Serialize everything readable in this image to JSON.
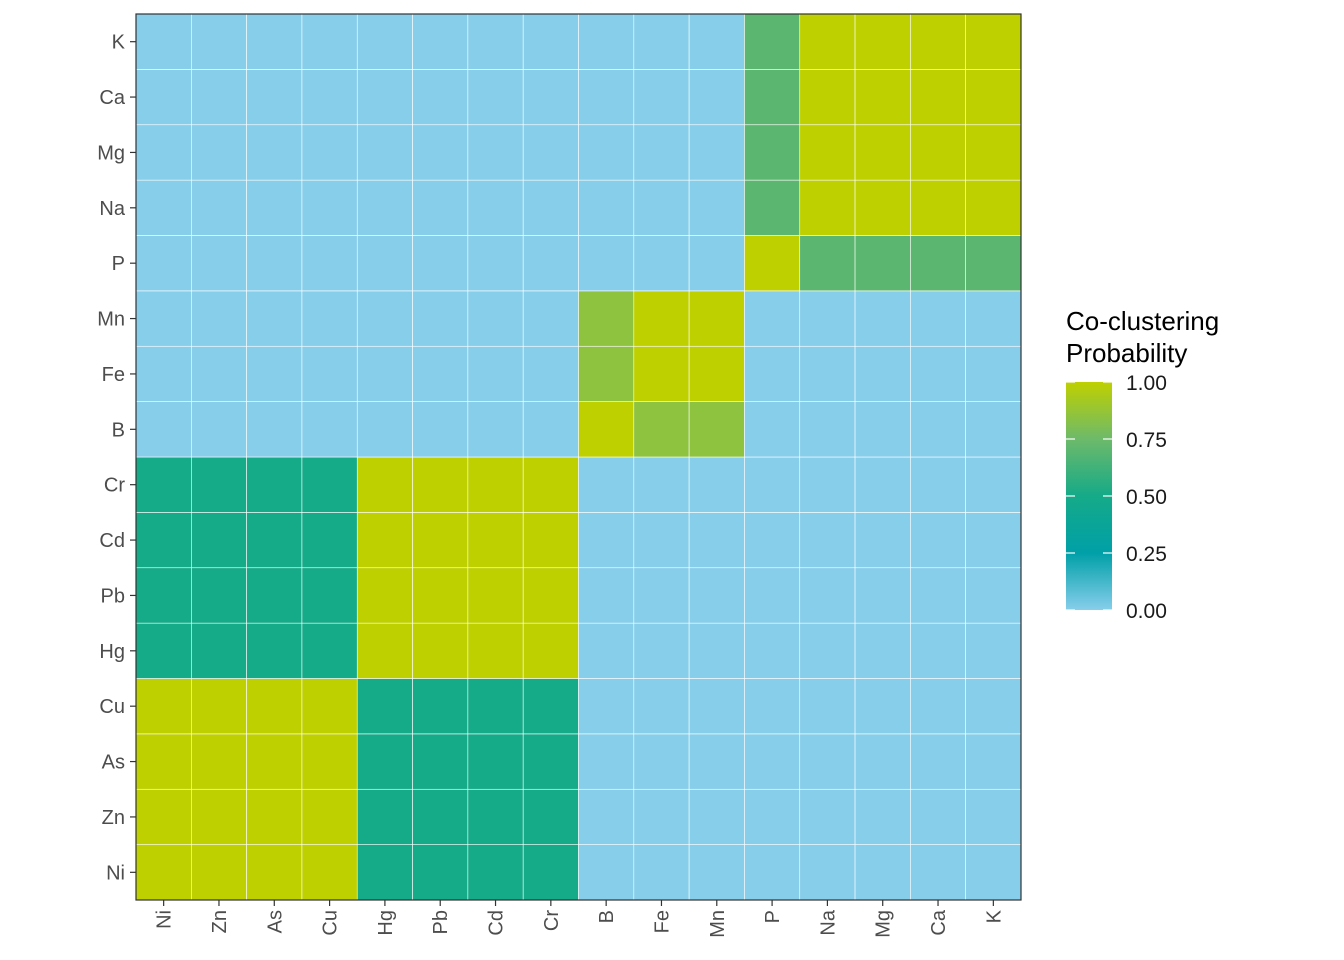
{
  "chart_data": {
    "type": "heatmap",
    "x_categories": [
      "Ni",
      "Zn",
      "As",
      "Cu",
      "Hg",
      "Pb",
      "Cd",
      "Cr",
      "B",
      "Fe",
      "Mn",
      "P",
      "Na",
      "Mg",
      "Ca",
      "K"
    ],
    "y_categories": [
      "Ni",
      "Zn",
      "As",
      "Cu",
      "Hg",
      "Pb",
      "Cd",
      "Cr",
      "B",
      "Fe",
      "Mn",
      "P",
      "Na",
      "Mg",
      "Ca",
      "K"
    ],
    "values": [
      [
        1,
        1,
        1,
        1,
        0.5,
        0.5,
        0.5,
        0.5,
        0,
        0,
        0,
        0,
        0,
        0,
        0,
        0
      ],
      [
        1,
        1,
        1,
        1,
        0.5,
        0.5,
        0.5,
        0.5,
        0,
        0,
        0,
        0,
        0,
        0,
        0,
        0
      ],
      [
        1,
        1,
        1,
        1,
        0.5,
        0.5,
        0.5,
        0.5,
        0,
        0,
        0,
        0,
        0,
        0,
        0,
        0
      ],
      [
        1,
        1,
        1,
        1,
        0.5,
        0.5,
        0.5,
        0.5,
        0,
        0,
        0,
        0,
        0,
        0,
        0,
        0
      ],
      [
        0.5,
        0.5,
        0.5,
        0.5,
        1,
        1,
        1,
        1,
        0,
        0,
        0,
        0,
        0,
        0,
        0,
        0
      ],
      [
        0.5,
        0.5,
        0.5,
        0.5,
        1,
        1,
        1,
        1,
        0,
        0,
        0,
        0,
        0,
        0,
        0,
        0
      ],
      [
        0.5,
        0.5,
        0.5,
        0.5,
        1,
        1,
        1,
        1,
        0,
        0,
        0,
        0,
        0,
        0,
        0,
        0
      ],
      [
        0.5,
        0.5,
        0.5,
        0.5,
        1,
        1,
        1,
        1,
        0,
        0,
        0,
        0,
        0,
        0,
        0,
        0
      ],
      [
        0,
        0,
        0,
        0,
        0,
        0,
        0,
        0,
        1,
        0.85,
        0.85,
        0,
        0,
        0,
        0,
        0
      ],
      [
        0,
        0,
        0,
        0,
        0,
        0,
        0,
        0,
        0.85,
        1,
        1,
        0,
        0,
        0,
        0,
        0
      ],
      [
        0,
        0,
        0,
        0,
        0,
        0,
        0,
        0,
        0.85,
        1,
        1,
        0,
        0,
        0,
        0,
        0
      ],
      [
        0,
        0,
        0,
        0,
        0,
        0,
        0,
        0,
        0,
        0,
        0,
        1,
        0.7,
        0.7,
        0.7,
        0.7
      ],
      [
        0,
        0,
        0,
        0,
        0,
        0,
        0,
        0,
        0,
        0,
        0,
        0.7,
        1,
        1,
        1,
        1
      ],
      [
        0,
        0,
        0,
        0,
        0,
        0,
        0,
        0,
        0,
        0,
        0,
        0.7,
        1,
        1,
        1,
        1
      ],
      [
        0,
        0,
        0,
        0,
        0,
        0,
        0,
        0,
        0,
        0,
        0,
        0.7,
        1,
        1,
        1,
        1
      ],
      [
        0,
        0,
        0,
        0,
        0,
        0,
        0,
        0,
        0,
        0,
        0,
        0.7,
        1,
        1,
        1,
        1
      ]
    ],
    "legend": {
      "title_lines": [
        "Co-clustering",
        "Probability"
      ],
      "range": [
        0,
        1
      ],
      "breaks": [
        0,
        0.25,
        0.5,
        0.75,
        1
      ],
      "break_labels": [
        "0.00",
        "0.25",
        "0.50",
        "0.75",
        "1.00"
      ],
      "placement": "right"
    },
    "color_scale": [
      {
        "value": 0.0,
        "color": "#87CEEB"
      },
      {
        "value": 0.25,
        "color": "#00A0A8"
      },
      {
        "value": 0.5,
        "color": "#15AA88"
      },
      {
        "value": 0.75,
        "color": "#6DBA6A"
      },
      {
        "value": 1.0,
        "color": "#BFD000"
      }
    ],
    "tile_border_color": "#ffffff",
    "panel_border_color": "#333333",
    "grid": false
  }
}
